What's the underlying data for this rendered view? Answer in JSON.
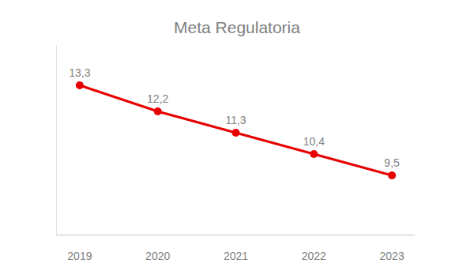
{
  "chart_data": {
    "type": "line",
    "title": "Meta Regulatoria",
    "categories": [
      "2019",
      "2020",
      "2021",
      "2022",
      "2023"
    ],
    "values": [
      13.3,
      12.2,
      11.3,
      10.4,
      9.5
    ],
    "value_labels": [
      "13,3",
      "12,2",
      "11,3",
      "10,4",
      "9,5"
    ],
    "color": "#e60000",
    "marker": "circle",
    "ylim": [
      7,
      15
    ],
    "grid": false,
    "data_labels": true,
    "tick_labels": "x"
  }
}
